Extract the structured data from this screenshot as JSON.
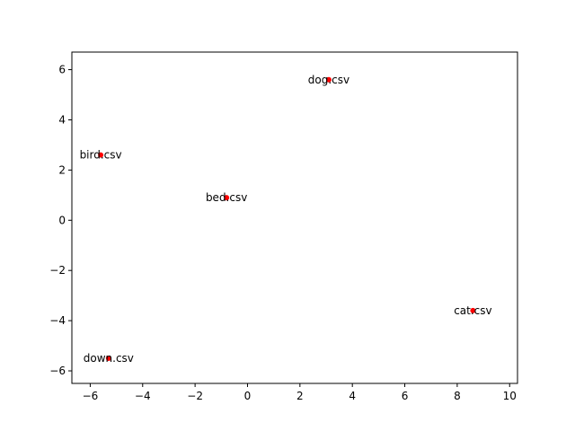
{
  "chart_data": {
    "type": "scatter",
    "title": "",
    "xlabel": "",
    "ylabel": "",
    "xlim": [
      -6.7,
      10.3
    ],
    "ylim": [
      -6.5,
      6.7
    ],
    "xticks": [
      -6,
      -4,
      -2,
      0,
      2,
      4,
      6,
      8,
      10
    ],
    "yticks": [
      -6,
      -4,
      -2,
      0,
      2,
      4,
      6
    ],
    "xtick_labels": [
      "−6",
      "−4",
      "−2",
      "0",
      "2",
      "4",
      "6",
      "8",
      "10"
    ],
    "ytick_labels": [
      "−6",
      "−4",
      "−2",
      "0",
      "2",
      "4",
      "6"
    ],
    "grid": false,
    "marker_color": "#ff0000",
    "points": [
      {
        "label": "dog.csv",
        "x": 3.1,
        "y": 5.6
      },
      {
        "label": "bird.csv",
        "x": -5.6,
        "y": 2.6
      },
      {
        "label": "bed.csv",
        "x": -0.8,
        "y": 0.9
      },
      {
        "label": "cat.csv",
        "x": 8.6,
        "y": -3.6
      },
      {
        "label": "down.csv",
        "x": -5.3,
        "y": -5.5
      }
    ]
  }
}
